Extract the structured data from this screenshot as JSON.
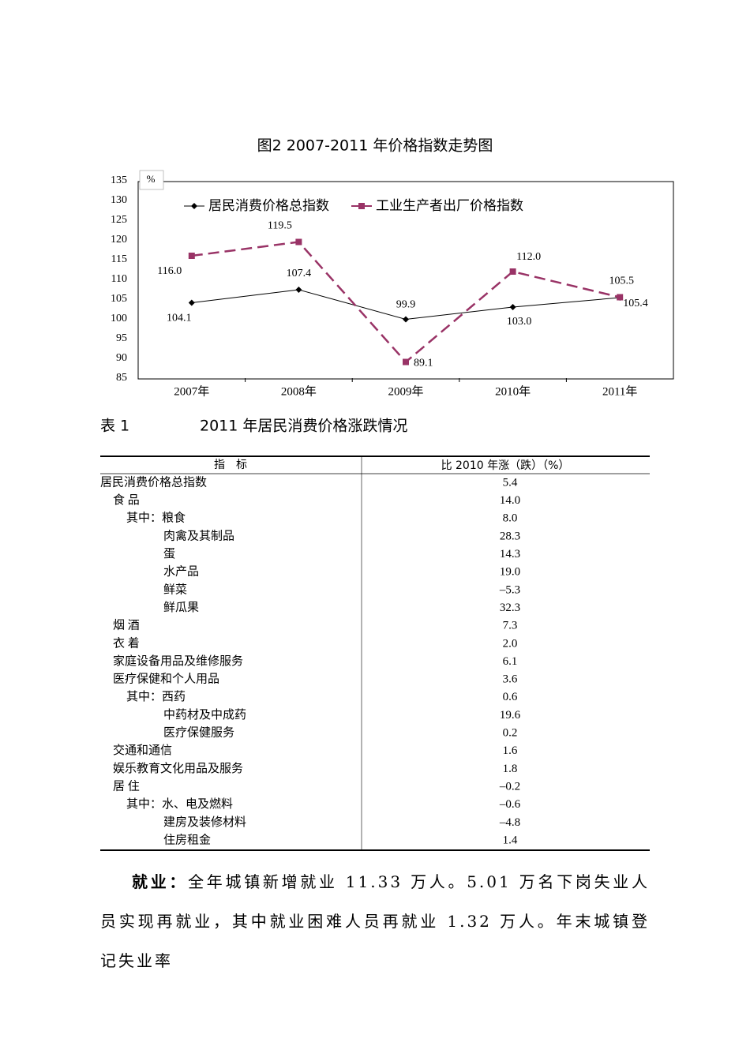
{
  "chart_data": {
    "type": "line",
    "title": "图2  2007-2011 年价格指数走势图",
    "y_unit": "%",
    "categories": [
      "2007年",
      "2008年",
      "2009年",
      "2010年",
      "2011年"
    ],
    "series": [
      {
        "name": "居民消费价格总指数",
        "color": "#000000",
        "marker": "diamond",
        "dashed": false,
        "values": [
          104.1,
          107.4,
          99.9,
          103.0,
          105.4
        ],
        "value_labels": [
          "104.1",
          "107.4",
          "99.9",
          "103.0",
          "105.4"
        ]
      },
      {
        "name": "工业生产者出厂价格指数",
        "color": "#993366",
        "marker": "square",
        "dashed": true,
        "values": [
          116.0,
          119.5,
          89.1,
          112.0,
          105.5
        ],
        "value_labels": [
          "116.0",
          "119.5",
          "89.1",
          "112.0",
          "105.5"
        ]
      }
    ],
    "ylim": [
      85,
      135
    ],
    "yticks": [
      85,
      90,
      95,
      100,
      105,
      110,
      115,
      120,
      125,
      130,
      135
    ],
    "grid": false,
    "legend": "top"
  },
  "table": {
    "label": "表 1",
    "title": "2011 年居民消费价格涨跌情况",
    "header": [
      "指　标",
      "比 2010 年涨（跌）（%）"
    ],
    "rows": [
      [
        "居民消费价格总指数",
        "5.4"
      ],
      [
        "食  品",
        "14.0"
      ],
      [
        "其中：粮食",
        "8.0"
      ],
      [
        "肉禽及其制品",
        "28.3"
      ],
      [
        "蛋",
        "14.3"
      ],
      [
        "水产品",
        "19.0"
      ],
      [
        "鲜菜",
        "–5.3"
      ],
      [
        "鲜瓜果",
        "32.3"
      ],
      [
        "烟  酒",
        "7.3"
      ],
      [
        "衣  着",
        "2.0"
      ],
      [
        "家庭设备用品及维修服务",
        "6.1"
      ],
      [
        "医疗保健和个人用品",
        "3.6"
      ],
      [
        "其中：西药",
        "0.6"
      ],
      [
        "中药材及中成药",
        "19.6"
      ],
      [
        "医疗保健服务",
        "0.2"
      ],
      [
        "交通和通信",
        "1.6"
      ],
      [
        "娱乐教育文化用品及服务",
        "1.8"
      ],
      [
        "居  住",
        "–0.2"
      ],
      [
        "其中：水、电及燃料",
        "–0.6"
      ],
      [
        "建房及装修材料",
        "–4.8"
      ],
      [
        "住房租金",
        "1.4"
      ]
    ]
  },
  "paragraph": {
    "lead": "就业：",
    "body": "全年城镇新增就业 11.33 万人。5.01 万名下岗失业人员实现再就业，其中就业困难人员再就业 1.32 万人。年末城镇登记失业率"
  }
}
